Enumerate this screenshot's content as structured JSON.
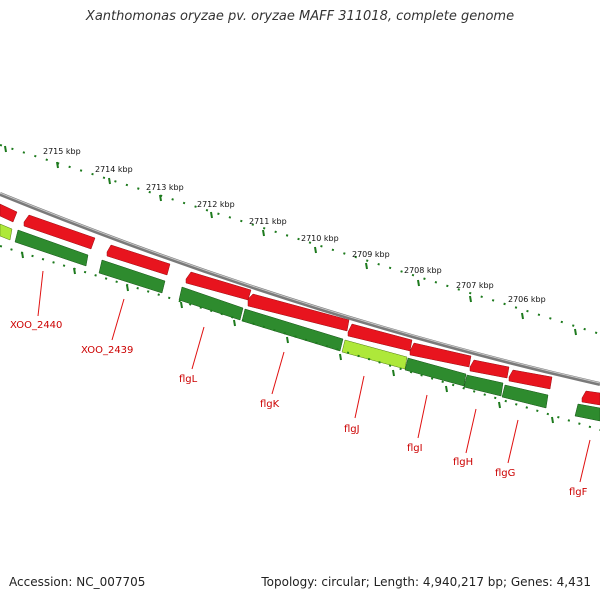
{
  "title": "Xanthomonas oryzae pv. oryzae MAFF 311018, complete genome",
  "accession": "Accession: NC_007705",
  "summary": "Topology: circular; Length: 4,940,217 bp; Genes: 4,431",
  "colors": {
    "forward_gene": "#e8141e",
    "reverse_gene": "#2e8b2e",
    "highlight_gene": "#aee83a",
    "backbone": "#888888",
    "ruler": "#1d7a1d",
    "label": "#cc0000"
  },
  "ruler_labels": [
    "2715 kbp",
    "2714 kbp",
    "2713 kbp",
    "2712 kbp",
    "2711 kbp",
    "2710 kbp",
    "2709 kbp",
    "2708 kbp",
    "2707 kbp",
    "2706 kbp"
  ],
  "gene_labels": [
    "XOO_2440",
    "XOO_2439",
    "flgL",
    "flgK",
    "flgJ",
    "flgI",
    "flgH",
    "flgG",
    "flgF"
  ]
}
